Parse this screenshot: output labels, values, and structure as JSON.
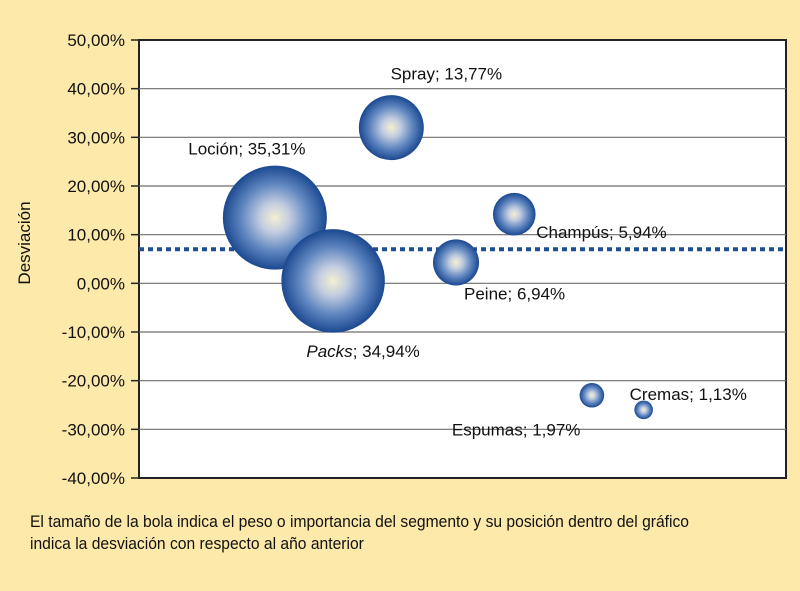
{
  "chart_data": {
    "type": "bubble",
    "ylabel": "Desviación",
    "xlabel": "",
    "ylim": [
      -40,
      50
    ],
    "ytick_labels": [
      "50,00%",
      "40,00%",
      "30,00%",
      "20,00%",
      "10,00%",
      "0,00%",
      "-10,00%",
      "-20,00%",
      "-30,00%",
      "-40,00%"
    ],
    "reference_line": {
      "y": 7,
      "style": "dotted",
      "color": "#1e4f8e"
    },
    "grid": true,
    "bubble_color": "#2a5fa8",
    "series": [
      {
        "label": "Loción; 35,31%",
        "name": "Loción",
        "weight": 35.31,
        "x": 2.1,
        "y": 13.5
      },
      {
        "label": "Packs; 34,94%",
        "name": "Packs",
        "weight": 34.94,
        "x": 3.0,
        "y": 0.5
      },
      {
        "label": "Spray; 13,77%",
        "name": "Spray",
        "weight": 13.77,
        "x": 3.9,
        "y": 32
      },
      {
        "label": "Champús; 5,94%",
        "name": "Champús",
        "weight": 5.94,
        "x": 5.8,
        "y": 14.2
      },
      {
        "label": "Peine; 6,94%",
        "name": "Peine",
        "weight": 6.94,
        "x": 4.9,
        "y": 4.3
      },
      {
        "label": "Espumas; 1,97%",
        "name": "Espumas",
        "weight": 1.97,
        "x": 7.0,
        "y": -23
      },
      {
        "label": "Cremas; 1,13%",
        "name": "Cremas",
        "weight": 1.13,
        "x": 7.8,
        "y": -26
      }
    ]
  },
  "caption": "El tamaño de la bola indica el peso o importancia del segmento y su posición dentro del gráfico indica la desviación con respecto al año anterior"
}
